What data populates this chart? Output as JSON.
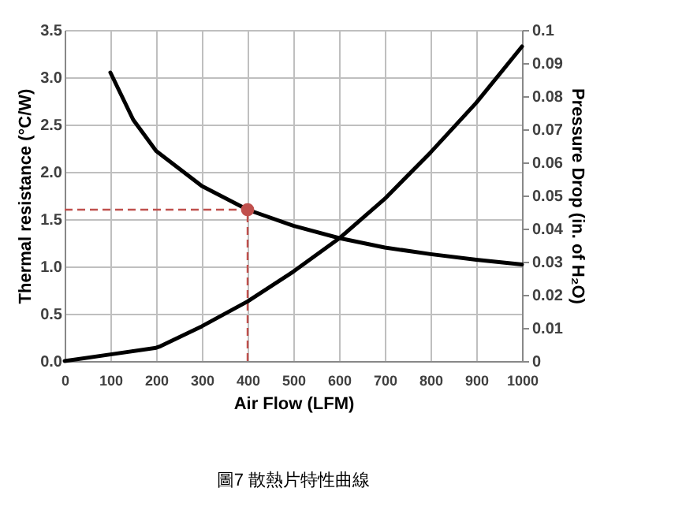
{
  "chart_data": {
    "type": "line",
    "xlabel": "Air Flow (LFM)",
    "ylabel": "Thermal resistance (°C/W)",
    "y2label": "Pressure Drop (in. of H₂O)",
    "annotations": [
      "圖7 散熱片特性曲線"
    ],
    "series": [
      {
        "color": "#000000",
        "x": [
          100,
          150,
          200,
          300,
          400,
          500,
          600,
          700,
          800,
          900,
          1000
        ],
        "values": [
          3.05,
          2.55,
          2.22,
          1.85,
          1.6,
          1.43,
          1.3,
          1.2,
          1.13,
          1.07,
          1.02
        ]
      },
      {
        "axis": "y2",
        "color": "#000000",
        "x": [
          0,
          100,
          200,
          210,
          300,
          400,
          500,
          600,
          700,
          800,
          900,
          1000
        ],
        "values": [
          0,
          0.002,
          0.004,
          0.0045,
          0.0105,
          0.018,
          0.027,
          0.037,
          0.049,
          0.063,
          0.078,
          0.095
        ]
      },
      {
        "type": "scatter",
        "marker": "circle",
        "color": "#c0504d",
        "x": [
          400
        ],
        "values": [
          1.6
        ]
      }
    ],
    "ref_lines": [
      {
        "axis": "x",
        "value": 400,
        "color": "#c0504d",
        "line_style": "dashed"
      },
      {
        "axis": "y",
        "value": 1.6,
        "color": "#c0504d",
        "line_style": "dashed"
      }
    ],
    "xlim": [
      0,
      1000
    ],
    "xticks": [
      0,
      100,
      200,
      300,
      400,
      500,
      600,
      700,
      800,
      900,
      1000
    ],
    "ylim": [
      0,
      3.5
    ],
    "yticks": [
      {
        "value": 0,
        "label": "0.0"
      },
      0.5,
      {
        "value": 1,
        "label": "1.0"
      },
      1.5,
      {
        "value": 2,
        "label": "2.0"
      },
      2.5,
      {
        "value": 3,
        "label": "3.0"
      },
      3.5
    ],
    "y2lim": [
      0,
      0.1
    ],
    "y2ticks": [
      0,
      0.01,
      0.02,
      0.03,
      0.04,
      0.05,
      0.06,
      0.07,
      0.08,
      0.09,
      0.1
    ],
    "grid": true,
    "marker": "none",
    "line_style": "solid"
  }
}
